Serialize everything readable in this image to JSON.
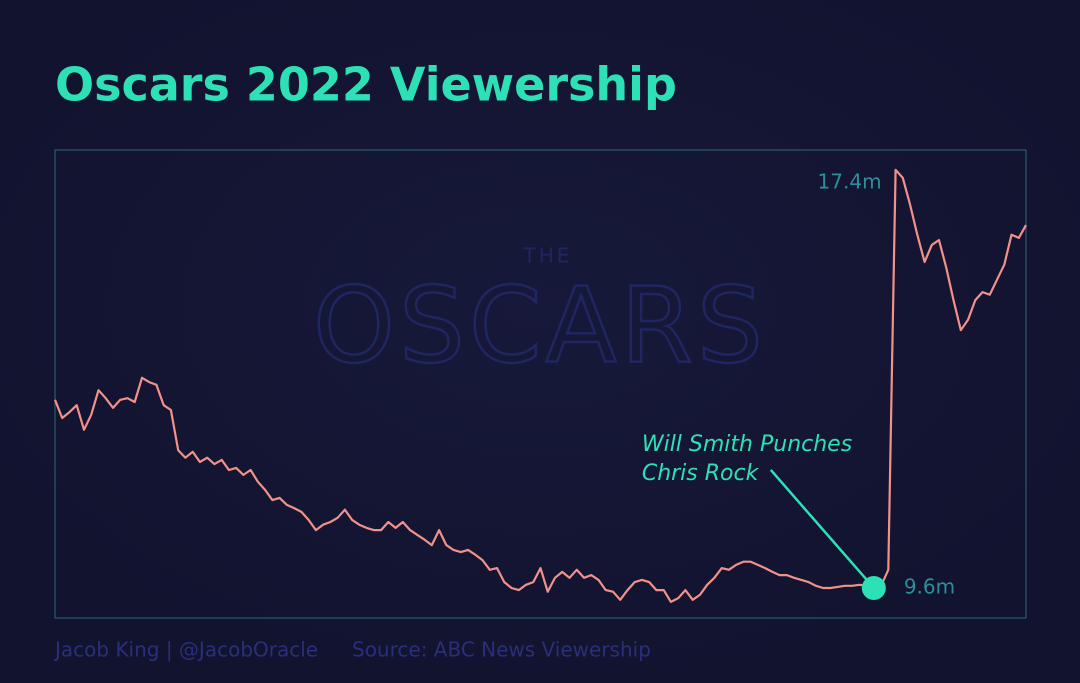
{
  "chart_data": {
    "type": "line",
    "title": "Oscars 2022 Viewership",
    "watermark": [
      "THE",
      "OSCARS"
    ],
    "annotation": [
      "Will Smith Punches",
      "Chris Rock"
    ],
    "credit": "Jacob King | @JacobOracle",
    "source": "Source: ABC News Viewership",
    "color": "#f0928a",
    "ylim": [
      9.04,
      17.77
    ],
    "values": [
      13.11,
      12.77,
      12.88,
      13.01,
      12.55,
      12.83,
      13.29,
      13.14,
      12.96,
      13.11,
      13.14,
      13.07,
      13.52,
      13.44,
      13.39,
      13.01,
      12.92,
      12.17,
      12.03,
      12.14,
      11.95,
      12.03,
      11.91,
      11.99,
      11.8,
      11.84,
      11.71,
      11.8,
      11.58,
      11.43,
      11.24,
      11.28,
      11.15,
      11.09,
      11.02,
      10.87,
      10.68,
      10.78,
      10.83,
      10.91,
      11.06,
      10.87,
      10.78,
      10.72,
      10.68,
      10.68,
      10.83,
      10.72,
      10.83,
      10.68,
      10.59,
      10.5,
      10.4,
      10.68,
      10.4,
      10.31,
      10.27,
      10.31,
      10.22,
      10.12,
      9.94,
      9.97,
      9.71,
      9.6,
      9.56,
      9.66,
      9.71,
      9.97,
      9.53,
      9.79,
      9.9,
      9.79,
      9.94,
      9.79,
      9.84,
      9.75,
      9.56,
      9.53,
      9.38,
      9.56,
      9.71,
      9.75,
      9.71,
      9.56,
      9.56,
      9.34,
      9.41,
      9.56,
      9.38,
      9.47,
      9.66,
      9.79,
      9.97,
      9.94,
      10.03,
      10.09,
      10.09,
      10.03,
      9.97,
      9.9,
      9.84,
      9.84,
      9.79,
      9.75,
      9.71,
      9.64,
      9.6,
      9.6,
      9.62,
      9.64,
      9.64,
      9.66,
      9.64,
      9.6,
      9.64,
      9.94,
      17.4,
      17.25,
      16.75,
      16.19,
      15.68,
      16.0,
      16.09,
      15.57,
      14.97,
      14.41,
      14.6,
      14.97,
      15.12,
      15.07,
      15.35,
      15.63,
      16.19,
      16.13,
      16.37
    ],
    "value_labels": [
      null,
      null,
      null,
      null,
      null,
      null,
      null,
      null,
      null,
      null,
      null,
      null,
      null,
      null,
      null,
      null,
      null,
      null,
      null,
      null,
      null,
      null,
      null,
      null,
      null,
      null,
      null,
      null,
      null,
      null,
      null,
      null,
      null,
      null,
      null,
      null,
      null,
      null,
      null,
      null,
      null,
      null,
      null,
      null,
      null,
      null,
      null,
      null,
      null,
      null,
      null,
      null,
      null,
      null,
      null,
      null,
      null,
      null,
      null,
      null,
      null,
      null,
      null,
      null,
      null,
      null,
      null,
      null,
      null,
      null,
      null,
      null,
      null,
      null,
      null,
      null,
      null,
      null,
      null,
      null,
      null,
      null,
      null,
      null,
      null,
      null,
      null,
      null,
      null,
      null,
      null,
      null,
      null,
      null,
      null,
      null,
      null,
      null,
      null,
      null,
      null,
      null,
      null,
      null,
      null,
      null,
      null,
      null,
      null,
      null,
      null,
      null,
      null,
      "9.6m",
      null,
      null,
      "17.4m",
      null,
      null,
      null,
      null,
      null,
      null,
      null,
      null,
      null,
      null,
      null,
      null,
      null,
      null,
      null,
      null,
      null,
      null
    ]
  }
}
